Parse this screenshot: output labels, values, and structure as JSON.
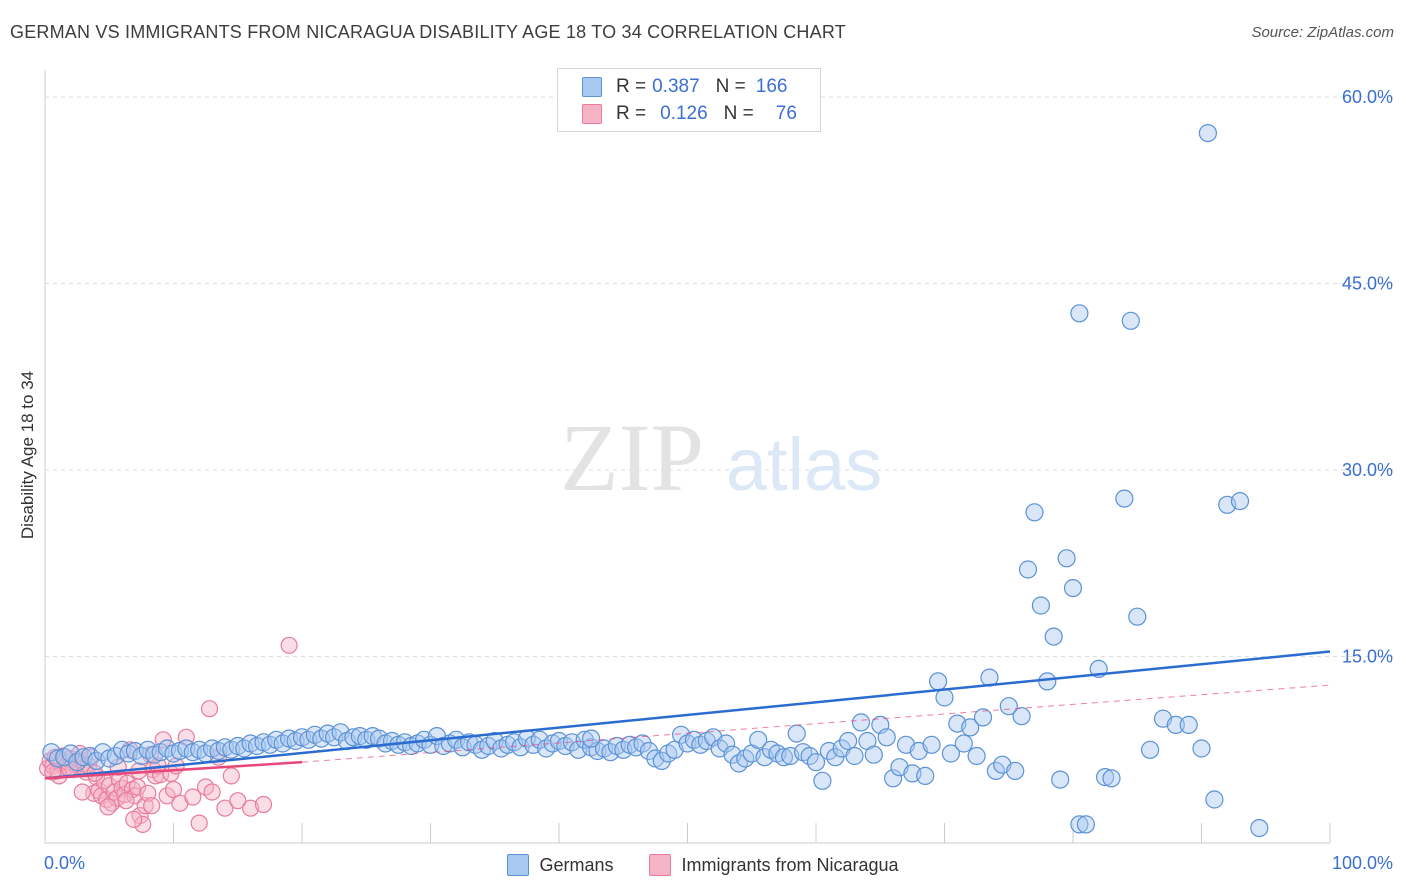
{
  "title": "GERMAN VS IMMIGRANTS FROM NICARAGUA DISABILITY AGE 18 TO 34 CORRELATION CHART",
  "source": "Source: ZipAtlas.com",
  "watermark": {
    "zip": "ZIP",
    "atlas": "atlas"
  },
  "colors": {
    "blue_fill": "#a9c8ef",
    "blue_stroke": "#5b92d6",
    "blue_line": "#2b6cd1",
    "pink_fill": "#f5b3c6",
    "pink_stroke": "#e97c9e",
    "pink_line": "#e8477a",
    "grid": "#dddddd",
    "tick_label": "#3a6fd0"
  },
  "legend_top": [
    {
      "r_label": "R =",
      "r_value": "0.387",
      "n_label": "N =",
      "n_value": "166"
    },
    {
      "r_label": "R =",
      "r_value": "0.126",
      "n_label": "N =",
      "n_value": "76"
    }
  ],
  "chart_data": {
    "type": "scatter",
    "ylabel": "Disability Age 18 to 34",
    "xlim": [
      0,
      100
    ],
    "ylim": [
      0,
      62
    ],
    "x_tick_labels": [
      {
        "value": 0,
        "label": "0.0%"
      },
      {
        "value": 100,
        "label": "100.0%"
      }
    ],
    "y_tick_labels": [
      {
        "value": 15,
        "label": "15.0%"
      },
      {
        "value": 30,
        "label": "30.0%"
      },
      {
        "value": 45,
        "label": "45.0%"
      },
      {
        "value": 60,
        "label": "60.0%"
      }
    ],
    "grid": true,
    "legend_position": "bottom",
    "series": [
      {
        "name": "Germans",
        "r": 0.387,
        "n": 166,
        "trend": {
          "x": [
            0,
            100
          ],
          "y": [
            5.2,
            15.4
          ]
        },
        "points": [
          [
            0.5,
            7.3
          ],
          [
            1,
            6.8
          ],
          [
            1.5,
            6.9
          ],
          [
            2,
            7.2
          ],
          [
            2.5,
            6.5
          ],
          [
            3,
            6.9
          ],
          [
            3.5,
            7.0
          ],
          [
            4,
            6.6
          ],
          [
            4.5,
            7.3
          ],
          [
            5,
            6.8
          ],
          [
            5.5,
            7.0
          ],
          [
            6,
            7.5
          ],
          [
            6.5,
            7.2
          ],
          [
            7,
            7.4
          ],
          [
            7.5,
            7.0
          ],
          [
            8,
            7.5
          ],
          [
            8.5,
            7.1
          ],
          [
            9,
            7.3
          ],
          [
            9.5,
            7.6
          ],
          [
            10,
            7.2
          ],
          [
            10.5,
            7.4
          ],
          [
            11,
            7.6
          ],
          [
            11.5,
            7.3
          ],
          [
            12,
            7.5
          ],
          [
            12.5,
            7.2
          ],
          [
            13,
            7.6
          ],
          [
            13.5,
            7.4
          ],
          [
            14,
            7.7
          ],
          [
            14.5,
            7.5
          ],
          [
            15,
            7.8
          ],
          [
            15.5,
            7.6
          ],
          [
            16,
            8.0
          ],
          [
            16.5,
            7.8
          ],
          [
            17,
            8.1
          ],
          [
            17.5,
            7.9
          ],
          [
            18,
            8.3
          ],
          [
            18.5,
            8.0
          ],
          [
            19,
            8.4
          ],
          [
            19.5,
            8.2
          ],
          [
            20,
            8.5
          ],
          [
            20.5,
            8.3
          ],
          [
            21,
            8.7
          ],
          [
            21.5,
            8.4
          ],
          [
            22,
            8.8
          ],
          [
            22.5,
            8.5
          ],
          [
            23,
            8.9
          ],
          [
            23.5,
            8.2
          ],
          [
            24,
            8.5
          ],
          [
            24.5,
            8.6
          ],
          [
            25,
            8.3
          ],
          [
            25.5,
            8.6
          ],
          [
            26,
            8.4
          ],
          [
            26.5,
            8.0
          ],
          [
            27,
            8.2
          ],
          [
            27.5,
            7.9
          ],
          [
            28,
            8.1
          ],
          [
            28.5,
            7.8
          ],
          [
            29,
            8.0
          ],
          [
            29.5,
            8.3
          ],
          [
            30,
            7.9
          ],
          [
            30.5,
            8.6
          ],
          [
            31,
            7.8
          ],
          [
            31.5,
            8.0
          ],
          [
            32,
            8.3
          ],
          [
            32.5,
            7.7
          ],
          [
            33,
            8.1
          ],
          [
            33.5,
            7.9
          ],
          [
            34,
            7.5
          ],
          [
            34.5,
            7.8
          ],
          [
            35,
            8.2
          ],
          [
            35.5,
            7.6
          ],
          [
            36,
            7.9
          ],
          [
            36.5,
            8.1
          ],
          [
            37,
            7.7
          ],
          [
            37.5,
            8.4
          ],
          [
            38,
            7.9
          ],
          [
            38.5,
            8.3
          ],
          [
            39,
            7.6
          ],
          [
            39.5,
            8.0
          ],
          [
            40,
            8.2
          ],
          [
            40.5,
            7.8
          ],
          [
            41,
            8.1
          ],
          [
            41.5,
            7.5
          ],
          [
            42,
            8.3
          ],
          [
            42.5,
            7.7
          ],
          [
            43,
            7.4
          ],
          [
            43.5,
            7.6
          ],
          [
            44,
            7.3
          ],
          [
            44.5,
            7.8
          ],
          [
            45,
            7.5
          ],
          [
            45.5,
            7.9
          ],
          [
            46,
            7.7
          ],
          [
            46.5,
            8.0
          ],
          [
            47,
            7.4
          ],
          [
            47.5,
            6.8
          ],
          [
            48,
            6.6
          ],
          [
            48.5,
            7.2
          ],
          [
            49,
            7.5
          ],
          [
            49.5,
            8.7
          ],
          [
            50,
            8.0
          ],
          [
            50.5,
            8.3
          ],
          [
            51,
            7.9
          ],
          [
            51.5,
            8.2
          ],
          [
            52,
            8.5
          ],
          [
            52.5,
            7.6
          ],
          [
            53,
            8.0
          ],
          [
            53.5,
            7.1
          ],
          [
            54,
            6.4
          ],
          [
            54.5,
            6.8
          ],
          [
            55,
            7.2
          ],
          [
            55.5,
            8.3
          ],
          [
            56,
            6.9
          ],
          [
            56.5,
            7.5
          ],
          [
            57,
            7.2
          ],
          [
            57.5,
            6.9
          ],
          [
            58,
            7.0
          ],
          [
            58.5,
            8.8
          ],
          [
            59,
            7.3
          ],
          [
            59.5,
            7.0
          ],
          [
            60,
            6.5
          ],
          [
            60.5,
            5.0
          ],
          [
            61,
            7.4
          ],
          [
            61.5,
            6.9
          ],
          [
            62,
            7.6
          ],
          [
            62.5,
            8.2
          ],
          [
            63,
            7.0
          ],
          [
            63.5,
            9.7
          ],
          [
            64,
            8.2
          ],
          [
            64.5,
            7.1
          ],
          [
            65,
            9.5
          ],
          [
            65.5,
            8.5
          ],
          [
            66,
            5.2
          ],
          [
            66.5,
            6.1
          ],
          [
            67,
            7.9
          ],
          [
            67.5,
            5.6
          ],
          [
            68,
            7.4
          ],
          [
            68.5,
            5.4
          ],
          [
            69,
            7.9
          ],
          [
            69.5,
            13.0
          ],
          [
            70,
            11.7
          ],
          [
            70.5,
            7.2
          ],
          [
            71,
            9.6
          ],
          [
            71.5,
            8.0
          ],
          [
            72,
            9.3
          ],
          [
            72.5,
            7.0
          ],
          [
            73,
            10.1
          ],
          [
            73.5,
            13.3
          ],
          [
            74,
            5.8
          ],
          [
            74.5,
            6.3
          ],
          [
            75,
            11.0
          ],
          [
            75.5,
            5.8
          ],
          [
            76,
            10.2
          ],
          [
            76.5,
            22.0
          ],
          [
            77,
            26.6
          ],
          [
            77.5,
            19.1
          ],
          [
            78,
            13.0
          ],
          [
            78.5,
            16.6
          ],
          [
            79,
            5.1
          ],
          [
            79.5,
            22.9
          ],
          [
            80,
            20.5
          ],
          [
            80.5,
            1.5
          ],
          [
            81,
            1.5
          ],
          [
            82,
            14.0
          ],
          [
            82.5,
            5.3
          ],
          [
            83,
            5.2
          ],
          [
            84,
            27.7
          ],
          [
            85,
            18.2
          ],
          [
            86,
            7.5
          ],
          [
            87,
            10.0
          ],
          [
            88,
            9.5
          ],
          [
            89,
            9.5
          ],
          [
            90,
            7.6
          ],
          [
            91,
            3.5
          ],
          [
            92,
            27.2
          ],
          [
            93,
            27.5
          ],
          [
            90.5,
            57.1
          ],
          [
            80.5,
            42.6
          ],
          [
            84.5,
            42.0
          ],
          [
            94.5,
            1.2
          ],
          [
            42.5,
            8.4
          ]
        ]
      },
      {
        "name": "Immigrants from Nicaragua",
        "r": 0.126,
        "n": 76,
        "trend": {
          "x": [
            0,
            20
          ],
          "y": [
            5.2,
            6.5
          ]
        },
        "trend_extension": {
          "x": [
            20,
            100
          ],
          "y": [
            6.5,
            12.7
          ]
        },
        "points": [
          [
            0.2,
            6.0
          ],
          [
            0.4,
            6.6
          ],
          [
            0.6,
            6.2
          ],
          [
            0.8,
            6.9
          ],
          [
            1.0,
            5.8
          ],
          [
            1.2,
            6.4
          ],
          [
            1.4,
            7.0
          ],
          [
            1.6,
            6.1
          ],
          [
            1.8,
            6.5
          ],
          [
            2.0,
            6.8
          ],
          [
            2.2,
            5.9
          ],
          [
            2.4,
            6.3
          ],
          [
            2.6,
            6.7
          ],
          [
            2.8,
            6.0
          ],
          [
            3.0,
            6.4
          ],
          [
            3.2,
            5.7
          ],
          [
            3.4,
            6.2
          ],
          [
            3.6,
            6.9
          ],
          [
            3.8,
            4.0
          ],
          [
            4.0,
            5.3
          ],
          [
            4.2,
            4.2
          ],
          [
            4.4,
            3.8
          ],
          [
            4.6,
            5.0
          ],
          [
            4.8,
            3.5
          ],
          [
            5.0,
            4.6
          ],
          [
            5.2,
            3.2
          ],
          [
            5.4,
            4.1
          ],
          [
            5.6,
            3.6
          ],
          [
            5.8,
            5.1
          ],
          [
            6.0,
            4.4
          ],
          [
            6.2,
            3.9
          ],
          [
            6.4,
            4.8
          ],
          [
            6.6,
            7.5
          ],
          [
            6.8,
            4.3
          ],
          [
            7.0,
            3.8
          ],
          [
            7.2,
            4.5
          ],
          [
            7.4,
            2.2
          ],
          [
            7.6,
            1.5
          ],
          [
            7.8,
            3.0
          ],
          [
            8.0,
            4.0
          ],
          [
            8.2,
            7.1
          ],
          [
            8.4,
            5.9
          ],
          [
            8.6,
            5.4
          ],
          [
            8.8,
            6.2
          ],
          [
            9.0,
            5.5
          ],
          [
            9.5,
            3.8
          ],
          [
            10.0,
            4.3
          ],
          [
            10.5,
            3.2
          ],
          [
            11.0,
            8.5
          ],
          [
            11.5,
            3.7
          ],
          [
            12.0,
            1.6
          ],
          [
            12.5,
            4.5
          ],
          [
            13.0,
            4.1
          ],
          [
            13.5,
            6.9
          ],
          [
            14.0,
            2.8
          ],
          [
            14.5,
            5.4
          ],
          [
            15.0,
            3.4
          ],
          [
            16.0,
            2.8
          ],
          [
            17.0,
            3.1
          ],
          [
            12.8,
            10.8
          ],
          [
            19.0,
            15.9
          ],
          [
            9.2,
            8.3
          ],
          [
            1.1,
            5.4
          ],
          [
            2.9,
            4.1
          ],
          [
            3.9,
            5.6
          ],
          [
            4.9,
            2.9
          ],
          [
            6.3,
            3.4
          ],
          [
            7.3,
            5.8
          ],
          [
            8.3,
            3.0
          ],
          [
            9.8,
            5.6
          ],
          [
            0.6,
            5.7
          ],
          [
            1.9,
            6.0
          ],
          [
            2.7,
            7.2
          ],
          [
            5.7,
            6.1
          ],
          [
            6.9,
            1.9
          ],
          [
            10.2,
            6.2
          ]
        ]
      }
    ]
  }
}
